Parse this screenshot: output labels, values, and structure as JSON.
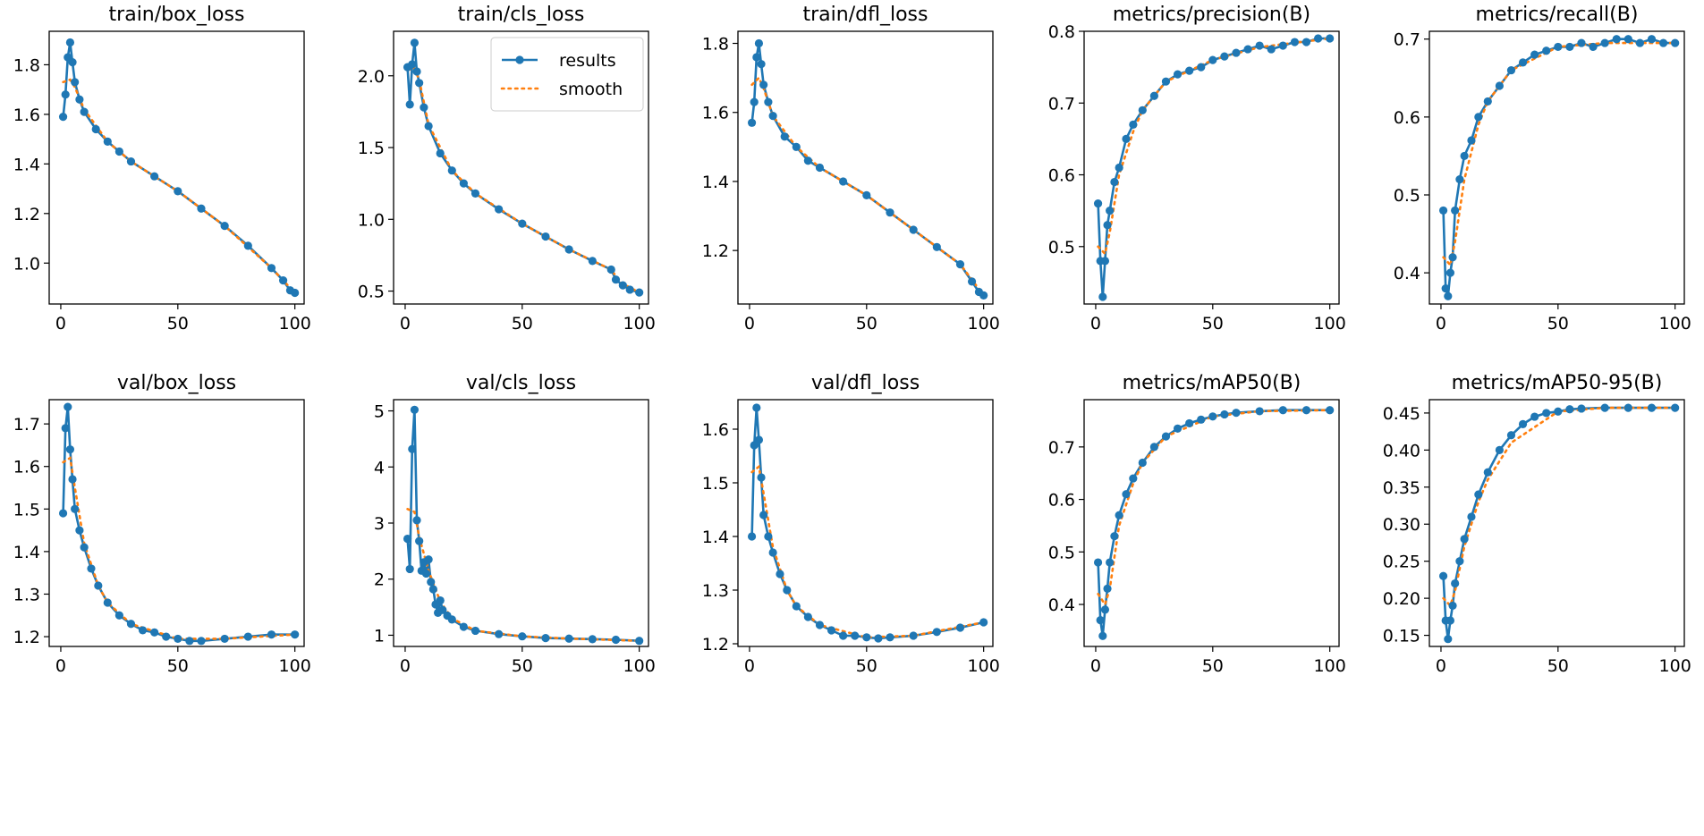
{
  "chart_data": [
    {
      "type": "line",
      "title": "train/box_loss",
      "xlim": [
        -4.95,
        103.95
      ],
      "ylim": [
        0.835,
        1.935
      ],
      "xticks": [
        0,
        50,
        100
      ],
      "yticks": [
        1.0,
        1.2,
        1.4,
        1.6,
        1.8
      ],
      "ytick_labels": [
        "1.0",
        "1.2",
        "1.4",
        "1.6",
        "1.8"
      ],
      "results": {
        "x": [
          1,
          2,
          3,
          4,
          5,
          6,
          8,
          10,
          15,
          20,
          25,
          30,
          40,
          50,
          60,
          70,
          80,
          90,
          95,
          98,
          100
        ],
        "y": [
          1.59,
          1.68,
          1.83,
          1.89,
          1.81,
          1.73,
          1.66,
          1.61,
          1.54,
          1.49,
          1.45,
          1.41,
          1.35,
          1.29,
          1.22,
          1.15,
          1.07,
          0.98,
          0.93,
          0.89,
          0.88
        ]
      },
      "smooth": {
        "x": [
          1,
          4,
          6,
          10,
          20,
          30,
          50,
          70,
          90,
          100
        ],
        "y": [
          1.73,
          1.74,
          1.71,
          1.62,
          1.49,
          1.41,
          1.29,
          1.15,
          0.98,
          0.88
        ]
      },
      "legend": null
    },
    {
      "type": "line",
      "title": "train/cls_loss",
      "xlim": [
        -4.95,
        103.95
      ],
      "ylim": [
        0.41,
        2.31
      ],
      "xticks": [
        0,
        50,
        100
      ],
      "yticks": [
        0.5,
        1.0,
        1.5,
        2.0
      ],
      "ytick_labels": [
        "0.5",
        "1.0",
        "1.5",
        "2.0"
      ],
      "results": {
        "x": [
          1,
          2,
          3,
          4,
          5,
          6,
          8,
          10,
          15,
          20,
          25,
          30,
          40,
          50,
          60,
          70,
          80,
          88,
          90,
          93,
          96,
          100
        ],
        "y": [
          2.06,
          1.8,
          2.08,
          2.23,
          2.03,
          1.95,
          1.78,
          1.65,
          1.46,
          1.34,
          1.25,
          1.18,
          1.07,
          0.97,
          0.88,
          0.79,
          0.71,
          0.65,
          0.58,
          0.54,
          0.51,
          0.49
        ]
      },
      "smooth": {
        "x": [
          1,
          4,
          6,
          10,
          20,
          30,
          50,
          70,
          88,
          92,
          100
        ],
        "y": [
          2.04,
          2.05,
          1.97,
          1.66,
          1.34,
          1.18,
          0.97,
          0.79,
          0.65,
          0.56,
          0.49
        ]
      },
      "legend": {
        "entries": [
          "results",
          "smooth"
        ],
        "loc": "upper right"
      }
    },
    {
      "type": "line",
      "title": "train/dfl_loss",
      "xlim": [
        -4.95,
        103.95
      ],
      "ylim": [
        1.045,
        1.835
      ],
      "xticks": [
        0,
        50,
        100
      ],
      "yticks": [
        1.2,
        1.4,
        1.6,
        1.8
      ],
      "ytick_labels": [
        "1.2",
        "1.4",
        "1.6",
        "1.8"
      ],
      "results": {
        "x": [
          1,
          2,
          3,
          4,
          5,
          6,
          8,
          10,
          15,
          20,
          25,
          30,
          40,
          50,
          60,
          70,
          80,
          90,
          95,
          98,
          100
        ],
        "y": [
          1.57,
          1.63,
          1.76,
          1.8,
          1.74,
          1.68,
          1.63,
          1.59,
          1.53,
          1.5,
          1.46,
          1.44,
          1.4,
          1.36,
          1.31,
          1.26,
          1.21,
          1.16,
          1.11,
          1.08,
          1.07
        ]
      },
      "smooth": {
        "x": [
          1,
          4,
          6,
          10,
          20,
          30,
          50,
          70,
          90,
          100
        ],
        "y": [
          1.68,
          1.7,
          1.67,
          1.59,
          1.5,
          1.44,
          1.36,
          1.26,
          1.16,
          1.07
        ]
      },
      "legend": null
    },
    {
      "type": "line",
      "title": "metrics/precision(B)",
      "xlim": [
        -4.95,
        103.95
      ],
      "ylim": [
        0.42,
        0.8
      ],
      "xticks": [
        0,
        50,
        100
      ],
      "yticks": [
        0.5,
        0.6,
        0.7,
        0.8
      ],
      "ytick_labels": [
        "0.5",
        "0.6",
        "0.7",
        "0.8"
      ],
      "results": {
        "x": [
          1,
          2,
          3,
          4,
          5,
          6,
          8,
          10,
          13,
          16,
          20,
          25,
          30,
          35,
          40,
          45,
          50,
          55,
          60,
          65,
          70,
          75,
          80,
          85,
          90,
          95,
          100
        ],
        "y": [
          0.56,
          0.48,
          0.43,
          0.48,
          0.53,
          0.55,
          0.59,
          0.61,
          0.65,
          0.67,
          0.69,
          0.71,
          0.73,
          0.74,
          0.745,
          0.75,
          0.76,
          0.765,
          0.77,
          0.775,
          0.78,
          0.775,
          0.78,
          0.785,
          0.785,
          0.79,
          0.79
        ]
      },
      "smooth": {
        "x": [
          1,
          4,
          6,
          10,
          16,
          20,
          30,
          50,
          70,
          100
        ],
        "y": [
          0.5,
          0.49,
          0.52,
          0.6,
          0.66,
          0.69,
          0.73,
          0.76,
          0.778,
          0.79
        ]
      },
      "legend": null
    },
    {
      "type": "line",
      "title": "metrics/recall(B)",
      "xlim": [
        -4.95,
        103.95
      ],
      "ylim": [
        0.36,
        0.71
      ],
      "xticks": [
        0,
        50,
        100
      ],
      "yticks": [
        0.4,
        0.5,
        0.6,
        0.7
      ],
      "ytick_labels": [
        "0.4",
        "0.5",
        "0.6",
        "0.7"
      ],
      "results": {
        "x": [
          1,
          2,
          3,
          4,
          5,
          6,
          8,
          10,
          13,
          16,
          20,
          25,
          30,
          35,
          40,
          45,
          50,
          55,
          60,
          65,
          70,
          75,
          80,
          85,
          90,
          95,
          100
        ],
        "y": [
          0.48,
          0.38,
          0.37,
          0.4,
          0.42,
          0.48,
          0.52,
          0.55,
          0.57,
          0.6,
          0.62,
          0.64,
          0.66,
          0.67,
          0.68,
          0.685,
          0.69,
          0.69,
          0.695,
          0.69,
          0.695,
          0.7,
          0.7,
          0.695,
          0.7,
          0.695,
          0.695
        ]
      },
      "smooth": {
        "x": [
          1,
          4,
          6,
          10,
          16,
          20,
          30,
          50,
          70,
          100
        ],
        "y": [
          0.42,
          0.41,
          0.44,
          0.52,
          0.59,
          0.62,
          0.66,
          0.69,
          0.695,
          0.695
        ]
      },
      "legend": null
    },
    {
      "type": "line",
      "title": "val/box_loss",
      "xlim": [
        -4.95,
        103.95
      ],
      "ylim": [
        1.177,
        1.757
      ],
      "xticks": [
        0,
        50,
        100
      ],
      "yticks": [
        1.2,
        1.3,
        1.4,
        1.5,
        1.6,
        1.7
      ],
      "ytick_labels": [
        "1.2",
        "1.3",
        "1.4",
        "1.5",
        "1.6",
        "1.7"
      ],
      "results": {
        "x": [
          1,
          2,
          3,
          4,
          5,
          6,
          8,
          10,
          13,
          16,
          20,
          25,
          30,
          35,
          40,
          45,
          50,
          55,
          60,
          70,
          80,
          90,
          100
        ],
        "y": [
          1.49,
          1.69,
          1.74,
          1.64,
          1.57,
          1.5,
          1.45,
          1.41,
          1.36,
          1.32,
          1.28,
          1.25,
          1.23,
          1.215,
          1.21,
          1.2,
          1.195,
          1.19,
          1.19,
          1.195,
          1.2,
          1.205,
          1.205
        ]
      },
      "smooth": {
        "x": [
          1,
          4,
          6,
          10,
          16,
          20,
          30,
          50,
          70,
          100
        ],
        "y": [
          1.61,
          1.62,
          1.55,
          1.42,
          1.32,
          1.28,
          1.23,
          1.195,
          1.195,
          1.205
        ]
      },
      "legend": null
    },
    {
      "type": "line",
      "title": "val/cls_loss",
      "xlim": [
        -4.95,
        103.95
      ],
      "ylim": [
        0.8,
        5.2
      ],
      "xticks": [
        0,
        50,
        100
      ],
      "yticks": [
        1,
        2,
        3,
        4,
        5
      ],
      "ytick_labels": [
        "1",
        "2",
        "3",
        "4",
        "5"
      ],
      "results": {
        "x": [
          1,
          2,
          3,
          4,
          5,
          6,
          7,
          8,
          9,
          10,
          11,
          12,
          13,
          14,
          15,
          16,
          18,
          20,
          25,
          30,
          40,
          50,
          60,
          70,
          80,
          90,
          100
        ],
        "y": [
          2.72,
          2.18,
          4.32,
          5.02,
          3.05,
          2.68,
          2.15,
          2.3,
          2.1,
          2.35,
          1.95,
          1.82,
          1.55,
          1.4,
          1.62,
          1.45,
          1.35,
          1.28,
          1.15,
          1.08,
          1.02,
          0.98,
          0.95,
          0.94,
          0.93,
          0.92,
          0.9
        ]
      },
      "smooth": {
        "x": [
          1,
          4,
          6,
          10,
          15,
          20,
          30,
          50,
          70,
          100
        ],
        "y": [
          3.25,
          3.2,
          2.75,
          2.15,
          1.6,
          1.3,
          1.08,
          0.98,
          0.94,
          0.9
        ]
      },
      "legend": null
    },
    {
      "type": "line",
      "title": "val/dfl_loss",
      "xlim": [
        -4.95,
        103.95
      ],
      "ylim": [
        1.195,
        1.655
      ],
      "xticks": [
        0,
        50,
        100
      ],
      "yticks": [
        1.2,
        1.3,
        1.4,
        1.5,
        1.6
      ],
      "ytick_labels": [
        "1.2",
        "1.3",
        "1.4",
        "1.5",
        "1.6"
      ],
      "results": {
        "x": [
          1,
          2,
          3,
          4,
          5,
          6,
          8,
          10,
          13,
          16,
          20,
          25,
          30,
          35,
          40,
          45,
          50,
          55,
          60,
          70,
          80,
          90,
          100
        ],
        "y": [
          1.4,
          1.57,
          1.64,
          1.58,
          1.51,
          1.44,
          1.4,
          1.37,
          1.33,
          1.3,
          1.27,
          1.25,
          1.235,
          1.225,
          1.215,
          1.215,
          1.212,
          1.21,
          1.212,
          1.215,
          1.222,
          1.23,
          1.24
        ]
      },
      "smooth": {
        "x": [
          1,
          4,
          6,
          10,
          16,
          20,
          30,
          50,
          70,
          100
        ],
        "y": [
          1.52,
          1.53,
          1.48,
          1.38,
          1.3,
          1.27,
          1.235,
          1.212,
          1.215,
          1.24
        ]
      },
      "legend": null
    },
    {
      "type": "line",
      "title": "metrics/mAP50(B)",
      "xlim": [
        -4.95,
        103.95
      ],
      "ylim": [
        0.32,
        0.79
      ],
      "xticks": [
        0,
        50,
        100
      ],
      "yticks": [
        0.4,
        0.5,
        0.6,
        0.7
      ],
      "ytick_labels": [
        "0.4",
        "0.5",
        "0.6",
        "0.7"
      ],
      "results": {
        "x": [
          1,
          2,
          3,
          4,
          5,
          6,
          8,
          10,
          13,
          16,
          20,
          25,
          30,
          35,
          40,
          45,
          50,
          55,
          60,
          70,
          80,
          90,
          100
        ],
        "y": [
          0.48,
          0.37,
          0.34,
          0.39,
          0.43,
          0.48,
          0.53,
          0.57,
          0.61,
          0.64,
          0.67,
          0.7,
          0.72,
          0.735,
          0.745,
          0.752,
          0.758,
          0.762,
          0.765,
          0.768,
          0.77,
          0.77,
          0.77
        ]
      },
      "smooth": {
        "x": [
          1,
          4,
          6,
          10,
          16,
          20,
          30,
          50,
          70,
          100
        ],
        "y": [
          0.42,
          0.4,
          0.43,
          0.55,
          0.63,
          0.67,
          0.72,
          0.758,
          0.768,
          0.77
        ]
      },
      "legend": null
    },
    {
      "type": "line",
      "title": "metrics/mAP50-95(B)",
      "xlim": [
        -4.95,
        103.95
      ],
      "ylim": [
        0.135,
        0.468
      ],
      "xticks": [
        0,
        50,
        100
      ],
      "yticks": [
        0.15,
        0.2,
        0.25,
        0.3,
        0.35,
        0.4,
        0.45
      ],
      "ytick_labels": [
        "0.15",
        "0.20",
        "0.25",
        "0.30",
        "0.35",
        "0.40",
        "0.45"
      ],
      "results": {
        "x": [
          1,
          2,
          3,
          4,
          5,
          6,
          8,
          10,
          13,
          16,
          20,
          25,
          30,
          35,
          40,
          45,
          50,
          55,
          60,
          70,
          80,
          90,
          100
        ],
        "y": [
          0.23,
          0.17,
          0.145,
          0.17,
          0.19,
          0.22,
          0.25,
          0.28,
          0.31,
          0.34,
          0.37,
          0.4,
          0.42,
          0.435,
          0.445,
          0.45,
          0.452,
          0.455,
          0.456,
          0.457,
          0.457,
          0.457,
          0.457
        ]
      },
      "smooth": {
        "x": [
          1,
          4,
          6,
          10,
          16,
          20,
          30,
          50,
          70,
          100
        ],
        "y": [
          0.2,
          0.19,
          0.21,
          0.27,
          0.33,
          0.36,
          0.41,
          0.452,
          0.457,
          0.457
        ]
      },
      "legend": null
    }
  ]
}
